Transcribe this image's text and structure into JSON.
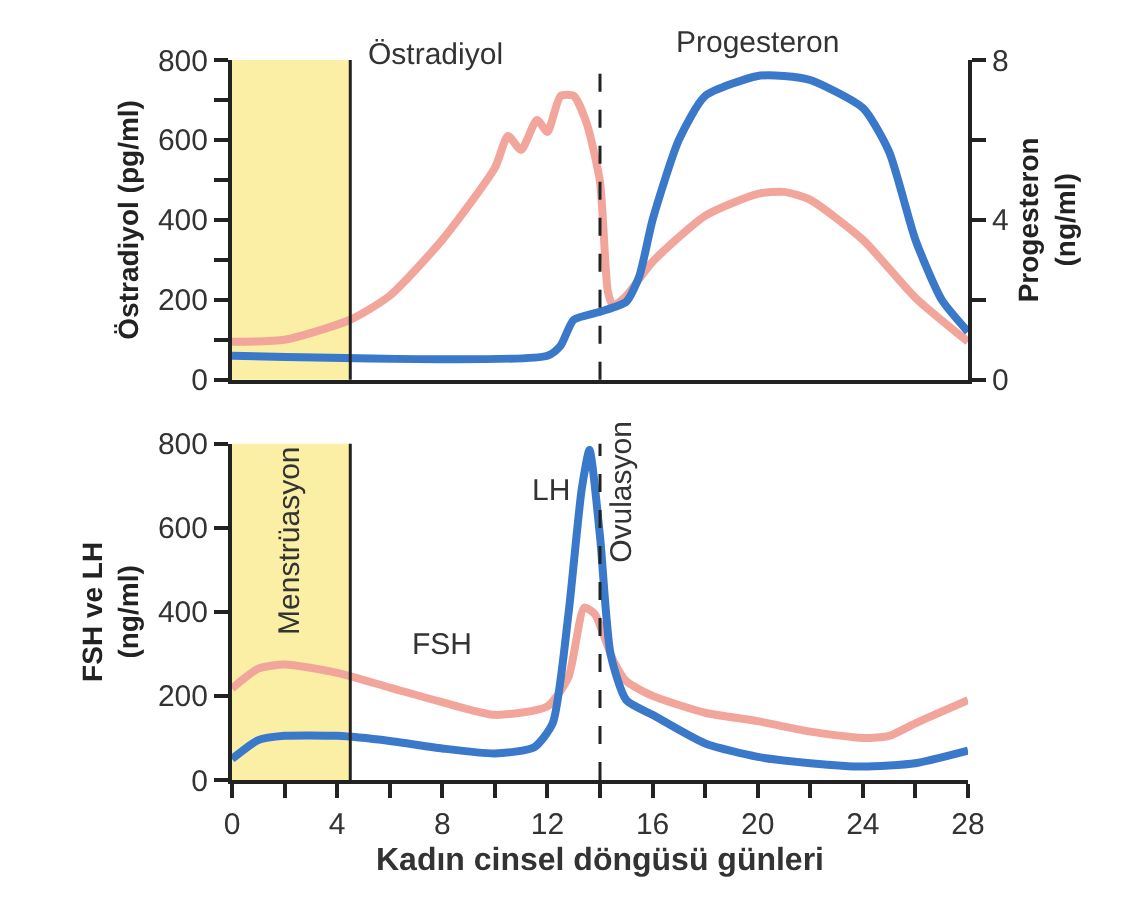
{
  "chart_data": [
    {
      "type": "line",
      "ylabel": "Östradiyol (pg/ml)",
      "y2label": "Progesteron\n(ng/ml)",
      "xlim": [
        0,
        28
      ],
      "ylim": [
        0,
        800
      ],
      "yticks": [
        0,
        {
          "value": 100,
          "label": null
        },
        200,
        {
          "value": 300,
          "label": null
        },
        400,
        {
          "value": 500,
          "label": null
        },
        600,
        {
          "value": 700,
          "label": null
        },
        800
      ],
      "y2lim": [
        0,
        8
      ],
      "y2ticks": [
        0,
        {
          "value": 2,
          "label": null
        },
        4,
        {
          "value": 6,
          "label": null
        },
        8
      ],
      "tick_labels": "y",
      "grid": false,
      "legend": false,
      "line_style": "solid",
      "series": [
        {
          "name": "Östradiyol",
          "color": "#f2a59b",
          "x": [
            0,
            2,
            4.5,
            6,
            8,
            10,
            10.5,
            11,
            11.6,
            12,
            12.5,
            13,
            13.5,
            14,
            14.3,
            14.5,
            15,
            16,
            18,
            20,
            21,
            22,
            24,
            26,
            28
          ],
          "values": [
            95,
            100,
            150,
            210,
            350,
            530,
            610,
            575,
            650,
            620,
            710,
            710,
            640,
            495,
            220,
            185,
            210,
            295,
            410,
            465,
            470,
            450,
            350,
            205,
            95
          ]
        },
        {
          "name": "Progesteron",
          "color": "#3a78c9",
          "axis": "y2",
          "x": [
            0,
            12,
            12.5,
            13,
            14,
            15,
            15.5,
            16,
            17,
            18,
            20,
            21,
            22,
            24,
            25,
            26,
            27,
            28
          ],
          "values": [
            0.6,
            0.6,
            0.85,
            1.5,
            1.7,
            1.95,
            2.6,
            4.0,
            6.0,
            7.1,
            7.6,
            7.6,
            7.5,
            6.8,
            5.7,
            3.5,
            2.0,
            1.2
          ]
        }
      ],
      "bands": [
        {
          "axis": "x",
          "from": 0,
          "to": 4.5,
          "color": "#fbefa6"
        }
      ],
      "ref_lines": [
        {
          "axis": "x",
          "value": 4.5,
          "line_style": "solid",
          "color": "#222222"
        },
        {
          "axis": "x",
          "value": 14,
          "line_style": "dashed",
          "color": "#222222"
        }
      ]
    },
    {
      "type": "line",
      "xlabel": "Kadın cinsel döngüsü günleri",
      "ylabel": "FSH ve LH\n(ng/ml)",
      "xlim": [
        0,
        28
      ],
      "xticks": [
        0,
        {
          "value": 2,
          "label": null
        },
        4,
        {
          "value": 6,
          "label": null
        },
        8,
        {
          "value": 10,
          "label": null
        },
        12,
        {
          "value": 14,
          "label": null
        },
        16,
        {
          "value": 18,
          "label": null
        },
        20,
        {
          "value": 22,
          "label": null
        },
        24,
        {
          "value": 26,
          "label": null
        },
        28
      ],
      "ylim": [
        0,
        800
      ],
      "yticks": [
        0,
        200,
        400,
        600,
        800
      ],
      "grid": false,
      "legend": false,
      "line_style": "solid",
      "series": [
        {
          "name": "FSH",
          "color": "#f2a59b",
          "x": [
            0,
            1,
            2,
            4,
            6,
            8,
            10,
            12,
            12.8,
            13.4,
            13.8,
            14.5,
            15,
            16,
            18,
            20,
            22,
            24,
            25,
            26,
            28
          ],
          "values": [
            218,
            265,
            275,
            255,
            220,
            185,
            155,
            175,
            245,
            410,
            395,
            285,
            235,
            200,
            160,
            140,
            115,
            100,
            105,
            135,
            190
          ]
        },
        {
          "name": "LH",
          "color": "#3a78c9",
          "x": [
            0,
            1,
            2,
            4,
            6,
            8,
            10,
            11.5,
            12.2,
            12.8,
            13.3,
            13.6,
            14,
            14.4,
            15,
            16,
            18,
            20,
            22,
            24,
            26,
            28
          ],
          "values": [
            50,
            95,
            105,
            105,
            93,
            75,
            63,
            78,
            135,
            395,
            690,
            785,
            580,
            300,
            190,
            155,
            87,
            55,
            40,
            32,
            40,
            70
          ]
        }
      ],
      "bands": [
        {
          "axis": "x",
          "from": 0,
          "to": 4.5,
          "color": "#fbefa6",
          "label": "Menstrüasyon"
        }
      ],
      "ref_lines": [
        {
          "axis": "x",
          "value": 4.5,
          "line_style": "solid",
          "color": "#222222"
        },
        {
          "axis": "x",
          "value": 14,
          "line_style": "dashed",
          "color": "#222222",
          "label": "Ovulasyon"
        }
      ]
    }
  ]
}
